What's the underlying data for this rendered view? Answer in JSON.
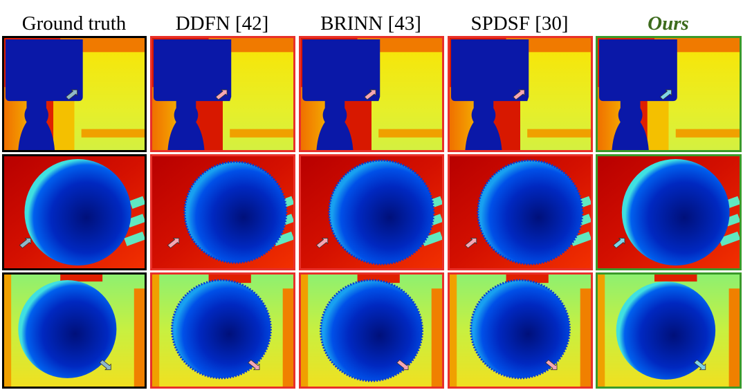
{
  "headers": {
    "gt": "Ground truth",
    "ddfn": "DDFN [42]",
    "brinn": "BRINN [43]",
    "spdsf": "SPDSF [30]",
    "ours": "Ours"
  },
  "colors": {
    "gt_border": "#000000",
    "baseline_border": "#e8302a",
    "ours_border": "#3a9a2a",
    "ours_header": "#3d6b1d",
    "arrow_gt": "#8fb8c8",
    "arrow_baseline": "#f4a6b4",
    "arrow_ours": "#7fd4e6"
  },
  "rows": [
    "scene-box",
    "scene-sphere-red",
    "scene-sphere-green"
  ],
  "columns": [
    "ground-truth",
    "ddfn",
    "brinn",
    "spdsf",
    "ours"
  ]
}
